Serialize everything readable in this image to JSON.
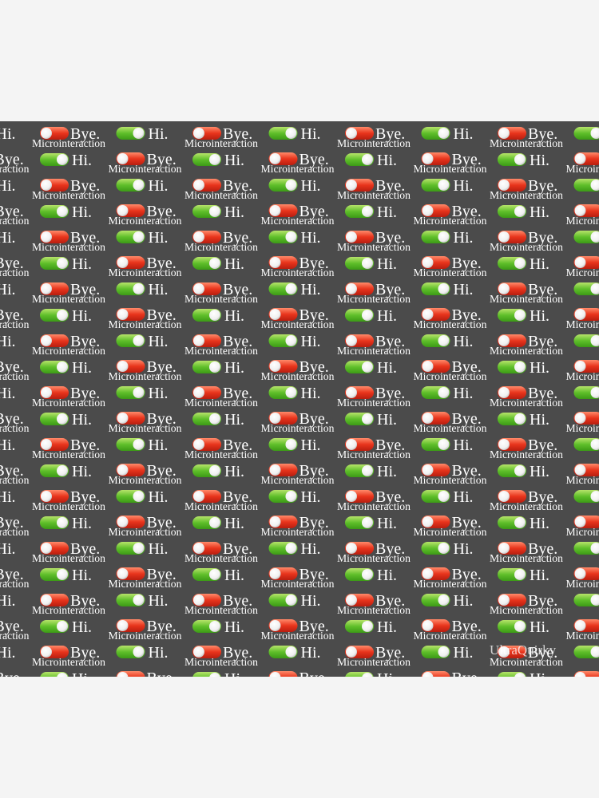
{
  "pattern": {
    "title": "Microinteraction",
    "on_label": "Hi.",
    "off_label": "Bye."
  },
  "watermark": "UltraQuirky"
}
